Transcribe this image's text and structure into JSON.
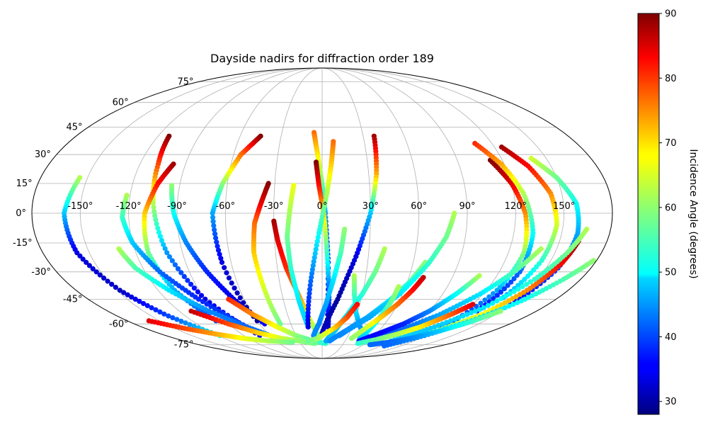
{
  "chart_data": {
    "type": "scatter",
    "projection": "mollweide",
    "title": "Dayside nadirs for diffraction order 189",
    "x_ticks": [
      -150,
      -120,
      -90,
      -60,
      -30,
      0,
      30,
      60,
      90,
      120,
      150
    ],
    "x_tick_labels": [
      "-150°",
      "-120°",
      "-90°",
      "-60°",
      "-30°",
      "0°",
      "30°",
      "60°",
      "90°",
      "120°",
      "150°"
    ],
    "y_ticks": [
      -75,
      -60,
      -45,
      -30,
      -15,
      0,
      15,
      30,
      45,
      60,
      75
    ],
    "y_tick_labels": [
      "-75°",
      "-60°",
      "-45°",
      "-30°",
      "-15°",
      "0°",
      "15°",
      "30°",
      "45°",
      "60°",
      "75°"
    ],
    "grid": true,
    "colormap": "jet",
    "colorbar": {
      "label": "Incidence Angle (degrees)",
      "range": [
        28,
        90
      ],
      "ticks": [
        30,
        40,
        50,
        60,
        70,
        80,
        90
      ],
      "tick_labels": [
        "30",
        "40",
        "50",
        "60",
        "70",
        "80",
        "90"
      ]
    },
    "series": [
      {
        "lon": [
          -155,
          -160,
          -158,
          -148,
          -135,
          -118
        ],
        "lat": [
          18,
          0,
          -20,
          -40,
          -55,
          -68
        ],
        "inc": [
          62,
          48,
          34,
          32,
          40,
          52
        ]
      },
      {
        "lon": [
          -112,
          -108,
          -105,
          -100,
          -90,
          -72
        ],
        "lat": [
          40,
          25,
          5,
          -20,
          -45,
          -68
        ],
        "inc": [
          90,
          78,
          62,
          45,
          34,
          36
        ]
      },
      {
        "lon": [
          -98,
          -104,
          -110,
          -112,
          -108,
          -98
        ],
        "lat": [
          25,
          15,
          0,
          -20,
          -40,
          -58
        ],
        "inc": [
          88,
          82,
          70,
          58,
          46,
          40
        ]
      },
      {
        "lon": [
          -122,
          -124,
          -120,
          -110,
          -95,
          -75
        ],
        "lat": [
          9,
          -2,
          -15,
          -30,
          -45,
          -62
        ],
        "inc": [
          62,
          55,
          48,
          42,
          38,
          40
        ]
      },
      {
        "lon": [
          -130,
          -125,
          -112,
          -95,
          -75,
          -55
        ],
        "lat": [
          -18,
          -28,
          -40,
          -52,
          -62,
          -70
        ],
        "inc": [
          62,
          56,
          50,
          44,
          42,
          44
        ]
      },
      {
        "lon": [
          -95,
          -92,
          -86,
          -78,
          -68,
          -55
        ],
        "lat": [
          14,
          0,
          -15,
          -30,
          -45,
          -60
        ],
        "inc": [
          60,
          52,
          44,
          38,
          34,
          36
        ]
      },
      {
        "lon": [
          -45,
          -55,
          -63,
          -68,
          -66,
          -60
        ],
        "lat": [
          40,
          30,
          15,
          0,
          -25,
          -58
        ],
        "inc": [
          90,
          76,
          60,
          46,
          34,
          30
        ]
      },
      {
        "lon": [
          -34,
          -38,
          -42,
          -44,
          -42,
          -40
        ],
        "lat": [
          15,
          5,
          -5,
          -20,
          -40,
          -60
        ],
        "inc": [
          90,
          84,
          76,
          70,
          64,
          58
        ]
      },
      {
        "lon": [
          -30,
          -28,
          -24,
          -18,
          -12,
          -5
        ],
        "lat": [
          -4,
          -14,
          -28,
          -42,
          -56,
          -68
        ],
        "inc": [
          88,
          84,
          80,
          74,
          66,
          58
        ]
      },
      {
        "lon": [
          -18,
          -20,
          -22,
          -21,
          -18,
          -14
        ],
        "lat": [
          14,
          2,
          -12,
          -28,
          -46,
          -62
        ],
        "inc": [
          66,
          62,
          58,
          54,
          50,
          48
        ]
      },
      {
        "lon": [
          -6,
          -3,
          0,
          2,
          4,
          5
        ],
        "lat": [
          42,
          30,
          15,
          0,
          -25,
          -60
        ],
        "inc": [
          76,
          68,
          58,
          46,
          36,
          30
        ]
      },
      {
        "lon": [
          -4,
          -2,
          1,
          3,
          5,
          6
        ],
        "lat": [
          26,
          14,
          0,
          -18,
          -40,
          -62
        ],
        "inc": [
          90,
          82,
          70,
          56,
          42,
          32
        ]
      },
      {
        "lon": [
          8,
          6,
          3,
          -2,
          -8,
          -14
        ],
        "lat": [
          37,
          25,
          10,
          -10,
          -35,
          -62
        ],
        "inc": [
          76,
          70,
          62,
          52,
          42,
          34
        ]
      },
      {
        "lon": [
          14,
          12,
          8,
          3,
          -3,
          -10
        ],
        "lat": [
          -8,
          -20,
          -34,
          -48,
          -60,
          -68
        ],
        "inc": [
          60,
          56,
          50,
          46,
          44,
          44
        ]
      },
      {
        "lon": [
          -72,
          -60,
          -45,
          -30,
          -12,
          5
        ],
        "lat": [
          -45,
          -54,
          -62,
          -68,
          -72,
          -74
        ],
        "inc": [
          80,
          74,
          66,
          60,
          56,
          54
        ]
      },
      {
        "lon": [
          -110,
          -90,
          -70,
          -50,
          -30,
          -10
        ],
        "lat": [
          -52,
          -60,
          -66,
          -70,
          -72,
          -74
        ],
        "inc": [
          86,
          78,
          70,
          64,
          60,
          58
        ]
      },
      {
        "lon": [
          -160,
          -140,
          -118,
          -96,
          -70,
          -40
        ],
        "lat": [
          -58,
          -63,
          -67,
          -70,
          -72,
          -73
        ],
        "inc": [
          84,
          78,
          72,
          66,
          62,
          58
        ]
      },
      {
        "lon": [
          38,
          35,
          30,
          22,
          12,
          0
        ],
        "lat": [
          40,
          20,
          0,
          -22,
          -45,
          -66
        ],
        "inc": [
          88,
          72,
          48,
          34,
          30,
          32
        ]
      },
      {
        "lon": [
          40,
          36,
          30,
          22,
          14,
          5
        ],
        "lat": [
          -18,
          -30,
          -42,
          -54,
          -64,
          -72
        ],
        "inc": [
          62,
          58,
          54,
          50,
          48,
          46
        ]
      },
      {
        "lon": [
          22,
          24,
          28,
          35,
          44,
          58
        ],
        "lat": [
          -32,
          -42,
          -52,
          -60,
          -66,
          -70
        ],
        "inc": [
          62,
          56,
          50,
          46,
          44,
          44
        ]
      },
      {
        "lon": [
          28,
          22,
          14,
          5,
          -5,
          -18
        ],
        "lat": [
          -48,
          -56,
          -62,
          -66,
          -70,
          -72
        ],
        "inc": [
          82,
          78,
          72,
          66,
          62,
          58
        ]
      },
      {
        "lon": [
          68,
          62,
          52,
          40,
          26,
          10
        ],
        "lat": [
          -25,
          -35,
          -46,
          -56,
          -64,
          -72
        ],
        "inc": [
          60,
          56,
          50,
          46,
          44,
          44
        ]
      },
      {
        "lon": [
          82,
          78,
          70,
          58,
          42,
          20
        ],
        "lat": [
          0,
          -12,
          -26,
          -42,
          -56,
          -68
        ],
        "inc": [
          62,
          58,
          54,
          50,
          46,
          44
        ]
      },
      {
        "lon": [
          55,
          54,
          52,
          50,
          48,
          46
        ],
        "lat": [
          -38,
          -46,
          -54,
          -60,
          -66,
          -70
        ],
        "inc": [
          62,
          58,
          54,
          52,
          50,
          48
        ]
      },
      {
        "lon": [
          70,
          66,
          60,
          52,
          44,
          36
        ],
        "lat": [
          -33,
          -40,
          -48,
          -56,
          -63,
          -70
        ],
        "inc": [
          86,
          82,
          76,
          70,
          64,
          60
        ]
      },
      {
        "lon": [
          112,
          120,
          126,
          130,
          128,
          120
        ],
        "lat": [
          27,
          15,
          0,
          -20,
          -40,
          -62
        ],
        "inc": [
          90,
          84,
          74,
          60,
          46,
          36
        ]
      },
      {
        "lon": [
          108,
          118,
          126,
          132,
          134,
          130
        ],
        "lat": [
          36,
          25,
          10,
          -10,
          -30,
          -52
        ],
        "inc": [
          80,
          72,
          62,
          52,
          42,
          36
        ]
      },
      {
        "lon": [
          125,
          135,
          143,
          146,
          144,
          138
        ],
        "lat": [
          34,
          24,
          10,
          -6,
          -24,
          -44
        ],
        "inc": [
          88,
          82,
          74,
          64,
          54,
          46
        ]
      },
      {
        "lon": [
          140,
          150,
          158,
          160,
          158,
          150
        ],
        "lat": [
          28,
          18,
          5,
          -10,
          -28,
          -48
        ],
        "inc": [
          64,
          58,
          52,
          46,
          40,
          36
        ]
      },
      {
        "lon": [
          162,
          158,
          150,
          138,
          122,
          100
        ],
        "lat": [
          -14,
          -26,
          -40,
          -54,
          -64,
          -72
        ],
        "inc": [
          90,
          82,
          74,
          66,
          58,
          52
        ]
      },
      {
        "lon": [
          165,
          158,
          148,
          132,
          112,
          90
        ],
        "lat": [
          -8,
          -20,
          -34,
          -50,
          -62,
          -72
        ],
        "inc": [
          62,
          58,
          54,
          50,
          48,
          48
        ]
      },
      {
        "lon": [
          178,
          168,
          155,
          138,
          118,
          95
        ],
        "lat": [
          -24,
          -34,
          -46,
          -58,
          -68,
          -76
        ],
        "inc": [
          60,
          56,
          52,
          48,
          44,
          42
        ]
      },
      {
        "lon": [
          140,
          130,
          118,
          102,
          82,
          58
        ],
        "lat": [
          -18,
          -30,
          -42,
          -54,
          -64,
          -72
        ],
        "inc": [
          62,
          56,
          50,
          46,
          42,
          40
        ]
      },
      {
        "lon": [
          108,
          100,
          90,
          78,
          64,
          48
        ],
        "lat": [
          -32,
          -42,
          -52,
          -60,
          -66,
          -72
        ],
        "inc": [
          62,
          52,
          44,
          38,
          36,
          36
        ]
      },
      {
        "lon": [
          120,
          110,
          98,
          84,
          68,
          50
        ],
        "lat": [
          -48,
          -55,
          -62,
          -67,
          -71,
          -74
        ],
        "inc": [
          84,
          76,
          68,
          62,
          58,
          54
        ]
      },
      {
        "lon": [
          150,
          138,
          124,
          108,
          90,
          70
        ],
        "lat": [
          -52,
          -59,
          -65,
          -70,
          -73,
          -75
        ],
        "inc": [
          60,
          54,
          48,
          44,
          42,
          42
        ]
      }
    ]
  }
}
